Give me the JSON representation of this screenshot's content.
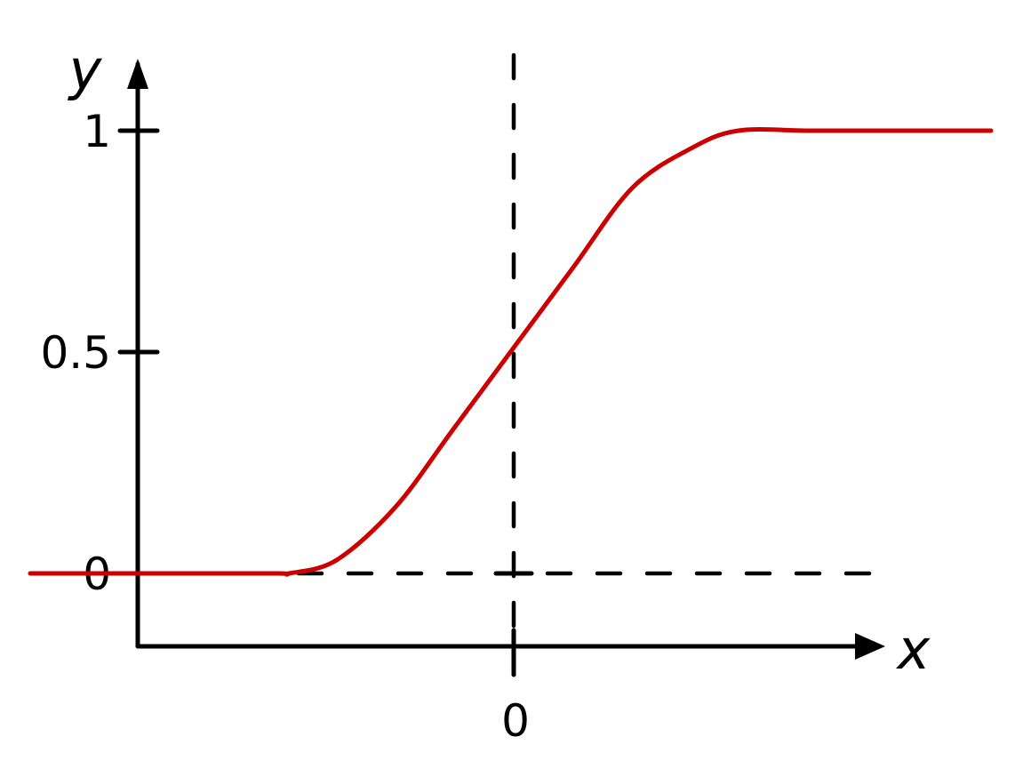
{
  "chart_data": {
    "type": "line",
    "title": "",
    "xlabel": "x",
    "ylabel": "y",
    "xlim": [
      -3,
      4
    ],
    "ylim": [
      0,
      1
    ],
    "y_ticks": [
      {
        "value": 1,
        "label": "1"
      },
      {
        "value": 0.5,
        "label": "0.5"
      },
      {
        "value": 0,
        "label": "0"
      }
    ],
    "x_ticks": [
      {
        "value": 0,
        "label": "0"
      }
    ],
    "series": [
      {
        "color": "#cc0000",
        "x": [
          -3.0,
          -2.0,
          -1.9,
          -1.5,
          -1.0,
          -0.5,
          0.0,
          0.5,
          1.0,
          1.5,
          1.9,
          2.5,
          3.2,
          4.0
        ],
        "y": [
          0.0,
          0.0,
          0.0,
          0.03,
          0.15,
          0.33,
          0.51,
          0.69,
          0.87,
          0.96,
          1.0,
          1.0,
          1.0,
          1.0
        ]
      }
    ],
    "reference_lines": [
      {
        "orientation": "horizontal",
        "value": 0,
        "style": "dashed"
      },
      {
        "orientation": "vertical",
        "value": 0,
        "style": "dashed"
      }
    ],
    "grid": false,
    "legend": "none"
  }
}
